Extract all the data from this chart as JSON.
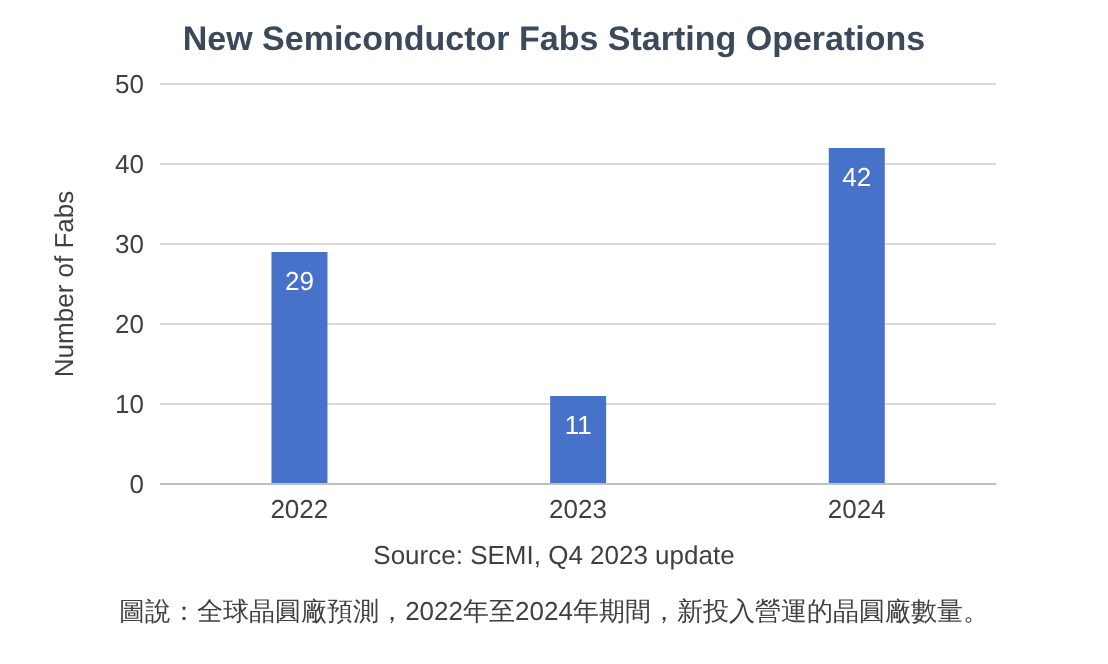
{
  "chart_data": {
    "type": "bar",
    "title": "New Semiconductor Fabs Starting Operations",
    "ylabel": "Number of Fabs",
    "categories": [
      "2022",
      "2023",
      "2024"
    ],
    "values": [
      29,
      11,
      42
    ],
    "color": "#4672c9",
    "ylim": [
      0,
      50
    ],
    "yticks": [
      0,
      10,
      20,
      30,
      40,
      50
    ],
    "grid": "y",
    "data_labels": true,
    "annotations": [
      "Source: SEMI, Q4 2023 update",
      "圖說：全球晶圓廠預測，2022年至2024年期間，新投入營運的晶圓廠數量。"
    ]
  }
}
